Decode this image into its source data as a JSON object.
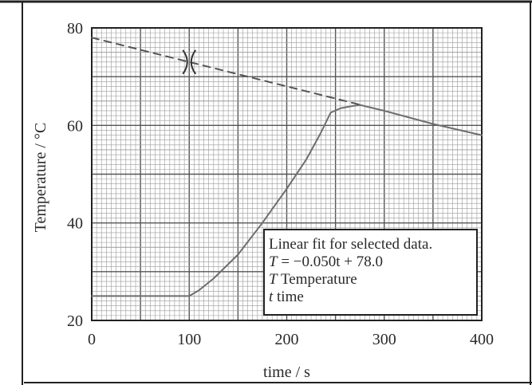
{
  "chart_data": {
    "type": "line",
    "title": "",
    "xlabel": "time / s",
    "ylabel": "Temperature / °C",
    "xlim": [
      0,
      400
    ],
    "ylim": [
      20,
      80
    ],
    "x_ticks": [
      "0",
      "100",
      "200",
      "300",
      "400"
    ],
    "y_ticks": [
      "20",
      "40",
      "60",
      "80"
    ],
    "grid": {
      "major_x": 50,
      "major_y": 10,
      "minor": 5
    },
    "series": [
      {
        "style": "solid",
        "x": [
          0,
          100,
          110,
          125,
          150,
          175,
          200,
          220,
          235,
          245,
          255,
          265,
          275,
          300,
          350,
          400
        ],
        "y": [
          25,
          25,
          26.2,
          28.6,
          33.5,
          40,
          47,
          53,
          58.5,
          62.6,
          63.5,
          63.9,
          64.2,
          63,
          60.3,
          58
        ]
      },
      {
        "style": "dashed",
        "x": [
          0,
          275
        ],
        "y": [
          78,
          64.25
        ]
      }
    ],
    "marker": {
      "label": "X",
      "x": 100,
      "y": 73
    },
    "legend": {
      "placement": "bottom-right",
      "lines": [
        {
          "prefix": "",
          "text": "Linear fit for selected data."
        },
        {
          "prefix": "T",
          "text": " = −0.050t + 78.0"
        },
        {
          "prefix": "T",
          "text": "  Temperature"
        },
        {
          "prefix": "t",
          "text": "   time"
        }
      ]
    },
    "colors": {
      "grid": "#9a9a9a",
      "line": "#6e6e6e",
      "axes": "#222222"
    }
  }
}
